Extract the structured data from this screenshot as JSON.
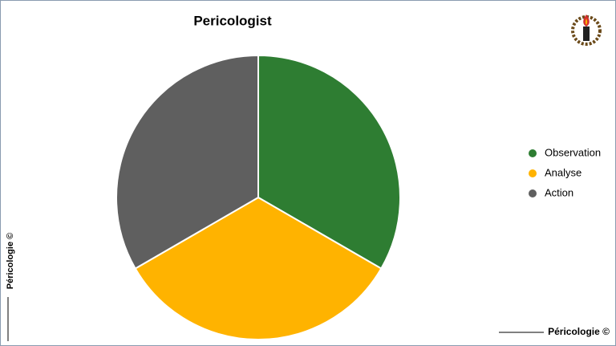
{
  "chart_data": {
    "type": "pie",
    "title": "Pericologist",
    "categories": [
      "Observation",
      "Analyse",
      "Action"
    ],
    "values": [
      33.33,
      33.33,
      33.33
    ],
    "colors": [
      "#2e7d32",
      "#ffb300",
      "#5f5f5f"
    ],
    "legend": "right"
  },
  "footer": {
    "vertical": "Péricologie ©",
    "horizontal": "Péricologie ©"
  }
}
